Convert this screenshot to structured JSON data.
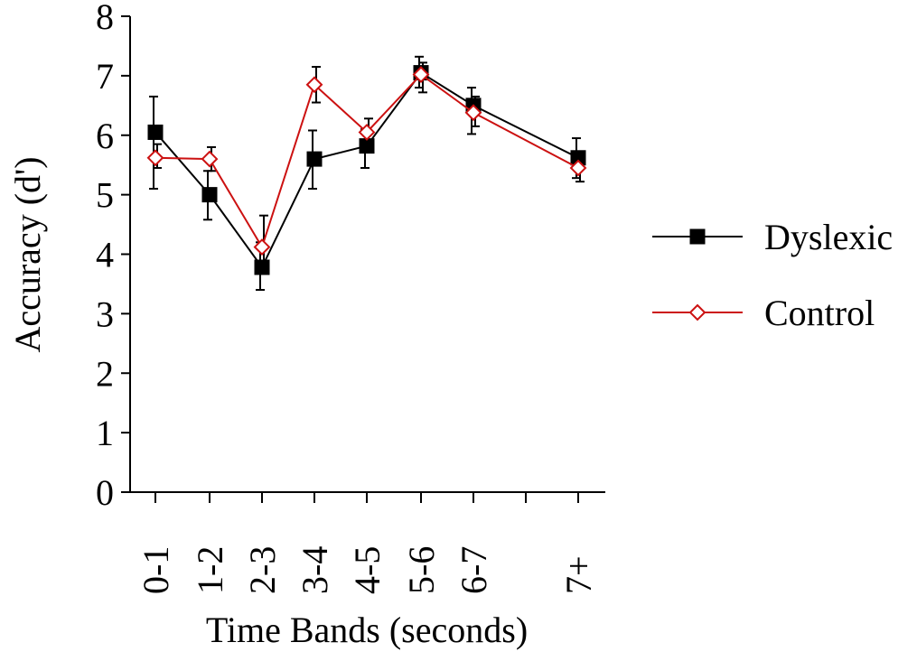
{
  "chart_data": {
    "type": "line",
    "title": "",
    "xlabel": "Time Bands (seconds)",
    "ylabel": "Accuracy (d')",
    "ylim": [
      0,
      8
    ],
    "yticks": [
      "0",
      "1",
      "2",
      "3",
      "4",
      "5",
      "6",
      "7",
      "8"
    ],
    "categories": [
      "0-1",
      "1-2",
      "2-3",
      "3-4",
      "4-5",
      "5-6",
      "6-7",
      "",
      "7+"
    ],
    "legend_position": "right",
    "grid": false,
    "series": [
      {
        "name": "Dyslexic",
        "color": "#000000",
        "marker": "filled-square",
        "points": [
          {
            "category": "0-1",
            "value": 6.05,
            "err_low": 5.1,
            "err_high": 6.65
          },
          {
            "category": "1-2",
            "value": 5.0,
            "err_low": 4.58,
            "err_high": 5.4
          },
          {
            "category": "2-3",
            "value": 3.78,
            "err_low": 3.4,
            "err_high": 4.2
          },
          {
            "category": "3-4",
            "value": 5.6,
            "err_low": 5.1,
            "err_high": 6.08
          },
          {
            "category": "4-5",
            "value": 5.82,
            "err_low": 5.45,
            "err_high": 6.1
          },
          {
            "category": "5-6",
            "value": 7.05,
            "err_low": 6.8,
            "err_high": 7.32
          },
          {
            "category": "6-7",
            "value": 6.5,
            "err_low": 6.02,
            "err_high": 6.8
          },
          {
            "category": "7+",
            "value": 5.62,
            "err_low": 5.28,
            "err_high": 5.95
          }
        ]
      },
      {
        "name": "Control",
        "color": "#cc1111",
        "marker": "open-diamond",
        "points": [
          {
            "category": "0-1",
            "value": 5.62,
            "err_low": 5.45,
            "err_high": 5.85
          },
          {
            "category": "1-2",
            "value": 5.6,
            "err_low": 5.4,
            "err_high": 5.8
          },
          {
            "category": "2-3",
            "value": 4.12,
            "err_low": 3.85,
            "err_high": 4.65
          },
          {
            "category": "3-4",
            "value": 6.85,
            "err_low": 6.55,
            "err_high": 7.15
          },
          {
            "category": "4-5",
            "value": 6.05,
            "err_low": 5.8,
            "err_high": 6.28
          },
          {
            "category": "5-6",
            "value": 7.02,
            "err_low": 6.72,
            "err_high": 7.22
          },
          {
            "category": "6-7",
            "value": 6.38,
            "err_low": 6.15,
            "err_high": 6.65
          },
          {
            "category": "7+",
            "value": 5.45,
            "err_low": 5.22,
            "err_high": 5.7
          }
        ]
      }
    ]
  }
}
